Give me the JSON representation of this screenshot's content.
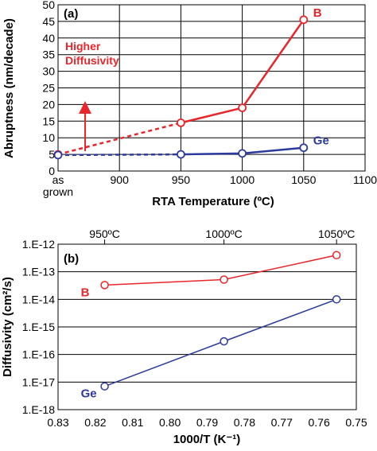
{
  "chart_data": [
    {
      "type": "line",
      "panel_label": "(a)",
      "xlabel": "RTA Temperature (ºC)",
      "ylabel": "Abruptness (nm/decade)",
      "xlim": [
        850,
        1100
      ],
      "ylim": [
        0,
        50
      ],
      "x_ticks": [
        {
          "value": 850,
          "label": "as grown"
        },
        {
          "value": 900,
          "label": "900"
        },
        {
          "value": 950,
          "label": "950"
        },
        {
          "value": 1000,
          "label": "1000"
        },
        {
          "value": 1050,
          "label": "1050"
        },
        {
          "value": 1100,
          "label": "1100"
        }
      ],
      "y_ticks": [
        0,
        5,
        10,
        15,
        20,
        25,
        30,
        35,
        40,
        45,
        50
      ],
      "grid": true,
      "series": [
        {
          "name": "B",
          "color": "#e8262b",
          "x": [
            850,
            950,
            1000,
            1050
          ],
          "y": [
            5,
            14.5,
            19,
            45.5
          ],
          "dashed_first_segment": true
        },
        {
          "name": "Ge",
          "color": "#2b3a9c",
          "x": [
            850,
            950,
            1000,
            1050
          ],
          "y": [
            4.8,
            5,
            5.3,
            7
          ],
          "dashed_first_segment": true
        }
      ],
      "annotation": {
        "text_lines": [
          "Higher",
          "Diffusivity"
        ],
        "color": "#e8262b"
      }
    },
    {
      "type": "line",
      "panel_label": "(b)",
      "xlabel": "1000/T (K⁻¹)",
      "ylabel": "Diffusivity (cm²/s)",
      "xlim": [
        0.83,
        0.75
      ],
      "log_y": true,
      "ylim_exp": [
        -18,
        -12
      ],
      "x_ticks": [
        "0.83",
        "0.82",
        "0.81",
        "0.80",
        "0.79",
        "0.78",
        "0.77",
        "0.76",
        "0.75"
      ],
      "y_ticks": [
        "1.E-18",
        "1.E-17",
        "1.E-16",
        "1.E-15",
        "1.E-14",
        "1.E-13",
        "1.E-12"
      ],
      "top_ticks": [
        {
          "value": 0.8175,
          "label": "950ºC"
        },
        {
          "value": 0.7855,
          "label": "1000ºC"
        },
        {
          "value": 0.7553,
          "label": "1050ºC"
        }
      ],
      "grid": true,
      "series": [
        {
          "name": "B",
          "color": "#e8262b",
          "x": [
            0.8175,
            0.7855,
            0.7553
          ],
          "y": [
            3.3e-14,
            5.2e-14,
            4e-13
          ]
        },
        {
          "name": "Ge",
          "color": "#2b3a9c",
          "x": [
            0.8175,
            0.7855,
            0.7553
          ],
          "y": [
            7e-18,
            3e-16,
            1e-14
          ]
        }
      ]
    }
  ]
}
